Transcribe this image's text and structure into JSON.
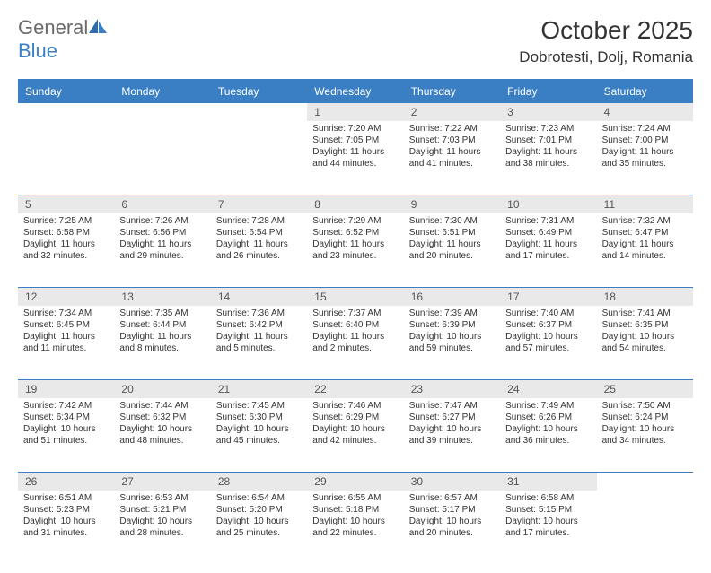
{
  "logo": {
    "word1": "General",
    "word2": "Blue"
  },
  "title": "October 2025",
  "location": "Dobrotesti, Dolj, Romania",
  "colors": {
    "accent": "#3a7fc4",
    "header_bg": "#3a7fc4",
    "daynum_bg": "#e9e9e9",
    "text": "#333333",
    "logo_gray": "#6b6b6b"
  },
  "dow": [
    "Sunday",
    "Monday",
    "Tuesday",
    "Wednesday",
    "Thursday",
    "Friday",
    "Saturday"
  ],
  "weeks": [
    [
      {
        "n": "",
        "sunrise": "",
        "sunset": "",
        "daylight": ""
      },
      {
        "n": "",
        "sunrise": "",
        "sunset": "",
        "daylight": ""
      },
      {
        "n": "",
        "sunrise": "",
        "sunset": "",
        "daylight": ""
      },
      {
        "n": "1",
        "sunrise": "Sunrise: 7:20 AM",
        "sunset": "Sunset: 7:05 PM",
        "daylight": "Daylight: 11 hours and 44 minutes."
      },
      {
        "n": "2",
        "sunrise": "Sunrise: 7:22 AM",
        "sunset": "Sunset: 7:03 PM",
        "daylight": "Daylight: 11 hours and 41 minutes."
      },
      {
        "n": "3",
        "sunrise": "Sunrise: 7:23 AM",
        "sunset": "Sunset: 7:01 PM",
        "daylight": "Daylight: 11 hours and 38 minutes."
      },
      {
        "n": "4",
        "sunrise": "Sunrise: 7:24 AM",
        "sunset": "Sunset: 7:00 PM",
        "daylight": "Daylight: 11 hours and 35 minutes."
      }
    ],
    [
      {
        "n": "5",
        "sunrise": "Sunrise: 7:25 AM",
        "sunset": "Sunset: 6:58 PM",
        "daylight": "Daylight: 11 hours and 32 minutes."
      },
      {
        "n": "6",
        "sunrise": "Sunrise: 7:26 AM",
        "sunset": "Sunset: 6:56 PM",
        "daylight": "Daylight: 11 hours and 29 minutes."
      },
      {
        "n": "7",
        "sunrise": "Sunrise: 7:28 AM",
        "sunset": "Sunset: 6:54 PM",
        "daylight": "Daylight: 11 hours and 26 minutes."
      },
      {
        "n": "8",
        "sunrise": "Sunrise: 7:29 AM",
        "sunset": "Sunset: 6:52 PM",
        "daylight": "Daylight: 11 hours and 23 minutes."
      },
      {
        "n": "9",
        "sunrise": "Sunrise: 7:30 AM",
        "sunset": "Sunset: 6:51 PM",
        "daylight": "Daylight: 11 hours and 20 minutes."
      },
      {
        "n": "10",
        "sunrise": "Sunrise: 7:31 AM",
        "sunset": "Sunset: 6:49 PM",
        "daylight": "Daylight: 11 hours and 17 minutes."
      },
      {
        "n": "11",
        "sunrise": "Sunrise: 7:32 AM",
        "sunset": "Sunset: 6:47 PM",
        "daylight": "Daylight: 11 hours and 14 minutes."
      }
    ],
    [
      {
        "n": "12",
        "sunrise": "Sunrise: 7:34 AM",
        "sunset": "Sunset: 6:45 PM",
        "daylight": "Daylight: 11 hours and 11 minutes."
      },
      {
        "n": "13",
        "sunrise": "Sunrise: 7:35 AM",
        "sunset": "Sunset: 6:44 PM",
        "daylight": "Daylight: 11 hours and 8 minutes."
      },
      {
        "n": "14",
        "sunrise": "Sunrise: 7:36 AM",
        "sunset": "Sunset: 6:42 PM",
        "daylight": "Daylight: 11 hours and 5 minutes."
      },
      {
        "n": "15",
        "sunrise": "Sunrise: 7:37 AM",
        "sunset": "Sunset: 6:40 PM",
        "daylight": "Daylight: 11 hours and 2 minutes."
      },
      {
        "n": "16",
        "sunrise": "Sunrise: 7:39 AM",
        "sunset": "Sunset: 6:39 PM",
        "daylight": "Daylight: 10 hours and 59 minutes."
      },
      {
        "n": "17",
        "sunrise": "Sunrise: 7:40 AM",
        "sunset": "Sunset: 6:37 PM",
        "daylight": "Daylight: 10 hours and 57 minutes."
      },
      {
        "n": "18",
        "sunrise": "Sunrise: 7:41 AM",
        "sunset": "Sunset: 6:35 PM",
        "daylight": "Daylight: 10 hours and 54 minutes."
      }
    ],
    [
      {
        "n": "19",
        "sunrise": "Sunrise: 7:42 AM",
        "sunset": "Sunset: 6:34 PM",
        "daylight": "Daylight: 10 hours and 51 minutes."
      },
      {
        "n": "20",
        "sunrise": "Sunrise: 7:44 AM",
        "sunset": "Sunset: 6:32 PM",
        "daylight": "Daylight: 10 hours and 48 minutes."
      },
      {
        "n": "21",
        "sunrise": "Sunrise: 7:45 AM",
        "sunset": "Sunset: 6:30 PM",
        "daylight": "Daylight: 10 hours and 45 minutes."
      },
      {
        "n": "22",
        "sunrise": "Sunrise: 7:46 AM",
        "sunset": "Sunset: 6:29 PM",
        "daylight": "Daylight: 10 hours and 42 minutes."
      },
      {
        "n": "23",
        "sunrise": "Sunrise: 7:47 AM",
        "sunset": "Sunset: 6:27 PM",
        "daylight": "Daylight: 10 hours and 39 minutes."
      },
      {
        "n": "24",
        "sunrise": "Sunrise: 7:49 AM",
        "sunset": "Sunset: 6:26 PM",
        "daylight": "Daylight: 10 hours and 36 minutes."
      },
      {
        "n": "25",
        "sunrise": "Sunrise: 7:50 AM",
        "sunset": "Sunset: 6:24 PM",
        "daylight": "Daylight: 10 hours and 34 minutes."
      }
    ],
    [
      {
        "n": "26",
        "sunrise": "Sunrise: 6:51 AM",
        "sunset": "Sunset: 5:23 PM",
        "daylight": "Daylight: 10 hours and 31 minutes."
      },
      {
        "n": "27",
        "sunrise": "Sunrise: 6:53 AM",
        "sunset": "Sunset: 5:21 PM",
        "daylight": "Daylight: 10 hours and 28 minutes."
      },
      {
        "n": "28",
        "sunrise": "Sunrise: 6:54 AM",
        "sunset": "Sunset: 5:20 PM",
        "daylight": "Daylight: 10 hours and 25 minutes."
      },
      {
        "n": "29",
        "sunrise": "Sunrise: 6:55 AM",
        "sunset": "Sunset: 5:18 PM",
        "daylight": "Daylight: 10 hours and 22 minutes."
      },
      {
        "n": "30",
        "sunrise": "Sunrise: 6:57 AM",
        "sunset": "Sunset: 5:17 PM",
        "daylight": "Daylight: 10 hours and 20 minutes."
      },
      {
        "n": "31",
        "sunrise": "Sunrise: 6:58 AM",
        "sunset": "Sunset: 5:15 PM",
        "daylight": "Daylight: 10 hours and 17 minutes."
      },
      {
        "n": "",
        "sunrise": "",
        "sunset": "",
        "daylight": ""
      }
    ]
  ]
}
